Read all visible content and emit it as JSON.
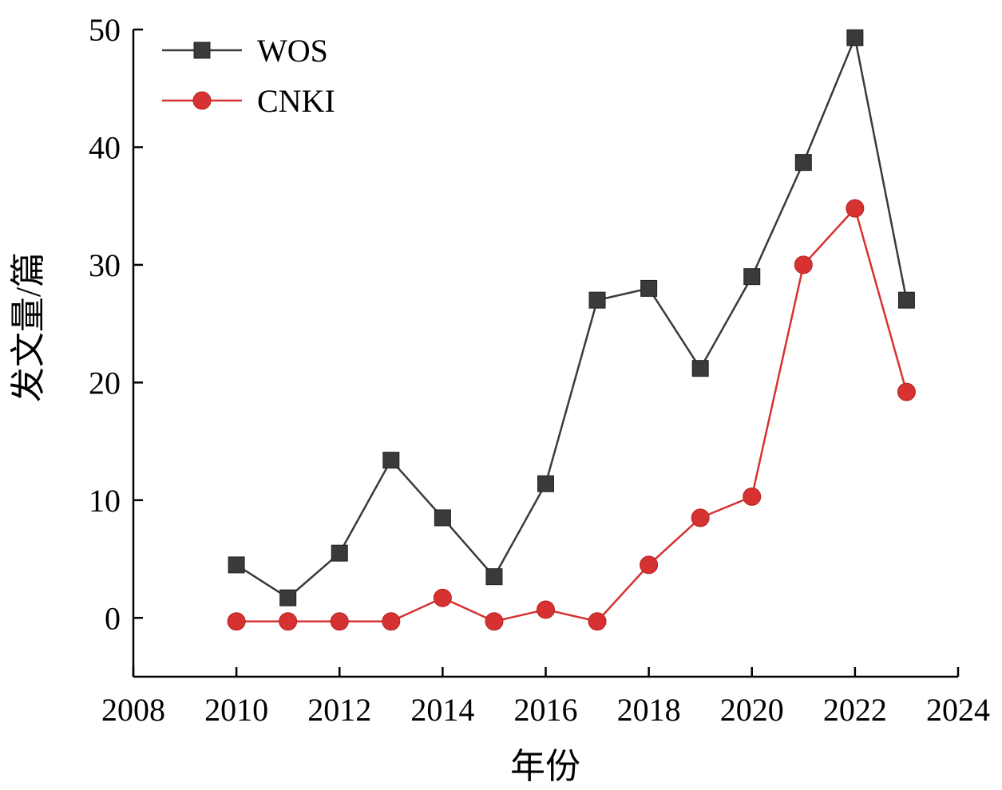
{
  "chart_data": {
    "type": "line",
    "title": "",
    "xlabel": "年份",
    "ylabel": "发文量/篇",
    "xlim": [
      2008,
      2024
    ],
    "ylim": [
      -5,
      50
    ],
    "x_ticks": [
      2008,
      2010,
      2012,
      2014,
      2016,
      2018,
      2020,
      2022,
      2024
    ],
    "y_ticks": [
      0,
      10,
      20,
      30,
      40,
      50
    ],
    "x_tick_labels": [
      "2008",
      "2010",
      "2012",
      "2014",
      "2016",
      "2018",
      "2020",
      "2022",
      "2024"
    ],
    "y_tick_labels": [
      "0",
      "10",
      "20",
      "30",
      "40",
      "50"
    ],
    "grid": false,
    "legend_position": "top-left",
    "series": [
      {
        "name": "WOS",
        "color": "#3a3a3a",
        "marker": "square",
        "x": [
          2010,
          2011,
          2012,
          2013,
          2014,
          2015,
          2016,
          2017,
          2018,
          2019,
          2020,
          2021,
          2022,
          2023
        ],
        "values": [
          4.5,
          1.7,
          5.5,
          13.4,
          8.5,
          3.5,
          11.4,
          27,
          28,
          21.2,
          29,
          38.7,
          49.3,
          27
        ]
      },
      {
        "name": "CNKI",
        "color": "#d63232",
        "marker": "circle",
        "x": [
          2010,
          2011,
          2012,
          2013,
          2014,
          2015,
          2016,
          2017,
          2018,
          2019,
          2020,
          2021,
          2022,
          2023
        ],
        "values": [
          -0.3,
          -0.3,
          -0.3,
          -0.3,
          1.7,
          -0.3,
          0.7,
          -0.3,
          4.5,
          8.5,
          10.3,
          30,
          34.8,
          19.2
        ]
      }
    ]
  }
}
